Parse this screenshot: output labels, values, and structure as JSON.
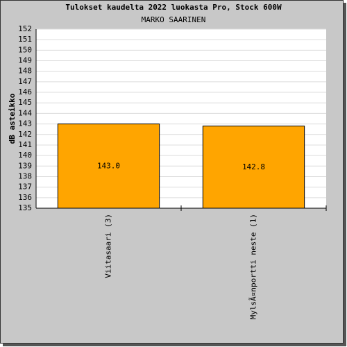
{
  "chart_data": {
    "type": "bar",
    "title": "Tulokset kaudelta 2022 luokasta Pro, Stock 600W",
    "subtitle": "MARKO SAARINEN",
    "y_label": "dB asteikko",
    "categories": [
      "Viitasaari (3)",
      "MylsÃ¤nportti neste (1)"
    ],
    "values": [
      143.0,
      142.8
    ],
    "value_labels": [
      "143.0",
      "142.8"
    ],
    "color": "#ffa500",
    "ylim": [
      135,
      152
    ],
    "yticks": [
      135,
      136,
      137,
      138,
      139,
      140,
      141,
      142,
      143,
      144,
      145,
      146,
      147,
      148,
      149,
      150,
      151,
      152
    ],
    "grid": true
  }
}
